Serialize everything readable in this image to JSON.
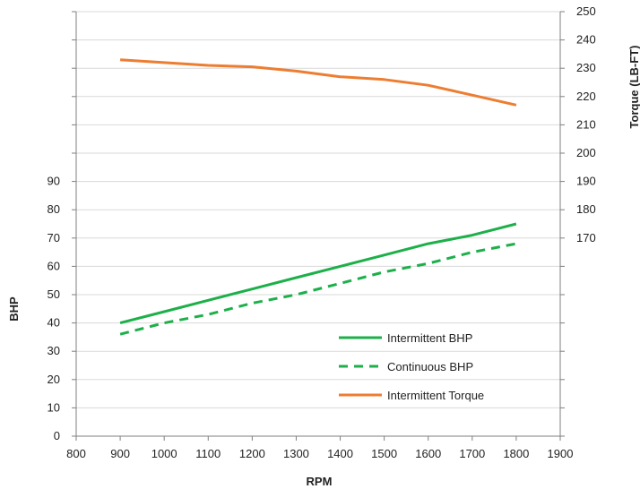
{
  "chart_data": {
    "type": "line",
    "xlabel": "RPM",
    "ylabel": "BHP",
    "y2label": "Torque (LB-FT)",
    "xlim": [
      800,
      1900
    ],
    "xticks": [
      800,
      900,
      1000,
      1100,
      1200,
      1300,
      1400,
      1500,
      1600,
      1700,
      1800,
      1900
    ],
    "ylim": [
      0,
      150
    ],
    "yticks_labeled": [
      0,
      10,
      20,
      30,
      40,
      50,
      60,
      70,
      80,
      90
    ],
    "y2lim": [
      100,
      250
    ],
    "y2ticks_labeled": [
      170,
      180,
      190,
      200,
      210,
      220,
      230,
      240,
      250
    ],
    "grid": "horizontal",
    "legend_position": "bottom-right",
    "x": [
      900,
      1000,
      1100,
      1200,
      1300,
      1400,
      1500,
      1600,
      1700,
      1800
    ],
    "series": [
      {
        "name": "Intermittent BHP",
        "axis": "left",
        "color": "#1db04a",
        "style": "solid",
        "values": [
          40,
          44,
          48,
          52,
          56,
          60,
          64,
          68,
          71,
          75
        ]
      },
      {
        "name": "Continuous BHP",
        "axis": "left",
        "color": "#1db04a",
        "style": "dashed",
        "values": [
          36,
          40,
          43,
          47,
          50,
          54,
          58,
          61,
          65,
          68
        ]
      },
      {
        "name": "Intermittent Torque",
        "axis": "right",
        "color": "#ed7d31",
        "style": "solid",
        "values": [
          233,
          232,
          231,
          230.5,
          229,
          227,
          226,
          224,
          220.5,
          217
        ]
      }
    ]
  }
}
